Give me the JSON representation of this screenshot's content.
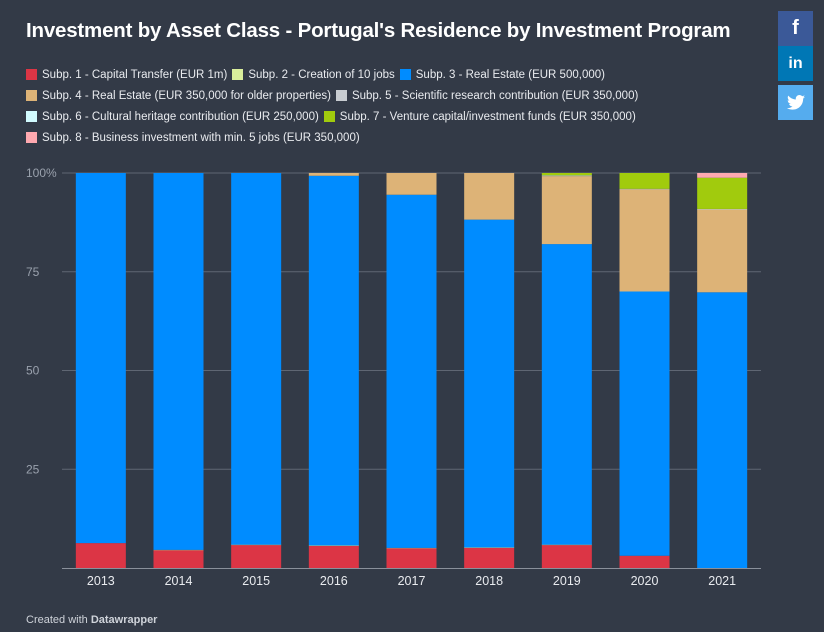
{
  "title": "Investment by Asset Class - Portugal's Residence by Investment Program",
  "share": {
    "facebook_label": "f",
    "linkedin_label": "in",
    "twitter_icon": "twitter-icon"
  },
  "footer": {
    "prefix": "Created with",
    "brand": "Datawrapper"
  },
  "chart_data": {
    "type": "bar",
    "stacked": true,
    "title": "Investment by Asset Class - Portugal's Residence by Investment Program",
    "categories": [
      "2013",
      "2014",
      "2015",
      "2016",
      "2017",
      "2018",
      "2019",
      "2020",
      "2021"
    ],
    "ylim": [
      0,
      100
    ],
    "yticks": [
      0,
      25,
      50,
      75,
      100
    ],
    "ytick_labels": [
      "",
      "25",
      "50",
      "75",
      "100%"
    ],
    "grid": true,
    "legend_position": "top",
    "series": [
      {
        "name": "Subp. 1 - Capital Transfer (EUR 1m)",
        "color": "#dc3545",
        "values": [
          6.3,
          4.5,
          5.8,
          5.6,
          5.0,
          5.1,
          5.8,
          3.1,
          0.0
        ]
      },
      {
        "name": "Subp. 2 - Creation of 10 jobs",
        "color": "#d9ee9b",
        "values": [
          0.0,
          0.1,
          0.1,
          0.1,
          0.1,
          0.1,
          0.1,
          0.0,
          0.0
        ]
      },
      {
        "name": "Subp. 3 - Real Estate (EUR 500,000)",
        "color": "#008cff",
        "values": [
          93.7,
          95.4,
          94.1,
          93.6,
          89.4,
          83.0,
          76.1,
          66.9,
          69.8
        ]
      },
      {
        "name": "Subp. 4 - Real Estate (EUR 350,000 for older properties)",
        "color": "#ddb377",
        "values": [
          0.0,
          0.0,
          0.0,
          0.7,
          5.5,
          11.8,
          17.2,
          25.9,
          21.0
        ]
      },
      {
        "name": "Subp. 5 - Scientific research contribution (EUR 350,000)",
        "color": "#c8ccd1",
        "values": [
          0.0,
          0.0,
          0.0,
          0.0,
          0.0,
          0.0,
          0.1,
          0.0,
          0.0
        ]
      },
      {
        "name": "Subp. 6 - Cultural heritage contribution (EUR 250,000)",
        "color": "#d2fbff",
        "values": [
          0.0,
          0.0,
          0.0,
          0.0,
          0.0,
          0.0,
          0.1,
          0.1,
          0.1
        ]
      },
      {
        "name": "Subp. 7 - Venture capital/investment funds (EUR 350,000)",
        "color": "#a1cb0d",
        "values": [
          0.0,
          0.0,
          0.0,
          0.0,
          0.0,
          0.0,
          0.6,
          4.0,
          7.9
        ]
      },
      {
        "name": "Subp. 8 - Business investment with min. 5 jobs (EUR 350,000)",
        "color": "#ffa9b0",
        "values": [
          0.0,
          0.0,
          0.0,
          0.0,
          0.0,
          0.0,
          0.0,
          0.0,
          1.2
        ]
      }
    ]
  },
  "colors": {
    "background": "#333a47",
    "facebook": "#3b5998",
    "linkedin": "#0077b5",
    "twitter": "#55acee"
  }
}
